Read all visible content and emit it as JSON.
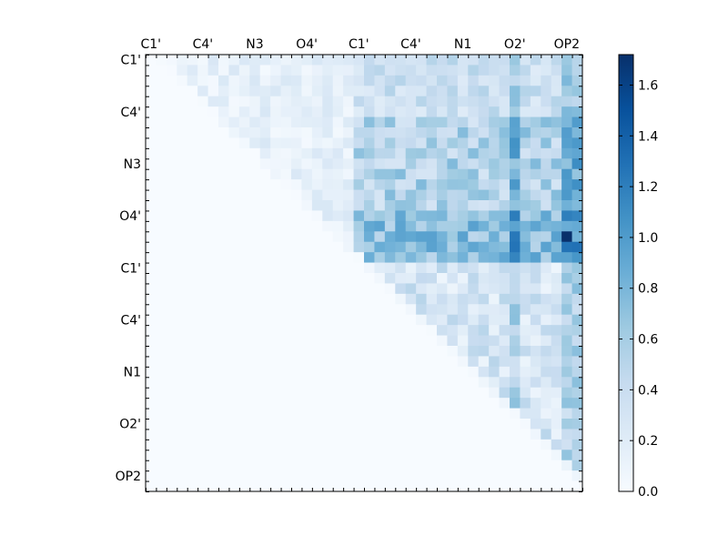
{
  "chart_data": {
    "type": "heatmap",
    "title": "",
    "xlabel": "",
    "ylabel": "",
    "grid": false,
    "size": 42,
    "x_tick_labels": [
      "C1'",
      "C4'",
      "N3",
      "O4'",
      "C1'",
      "C4'",
      "N1",
      "O2'",
      "OP2"
    ],
    "x_tick_index": [
      0,
      5,
      10,
      15,
      20,
      25,
      30,
      35,
      40
    ],
    "y_tick_labels": [
      "C1'",
      "C4'",
      "N3",
      "O4'",
      "C1'",
      "C4'",
      "N1",
      "O2'",
      "OP2"
    ],
    "y_tick_index": [
      0,
      5,
      10,
      15,
      20,
      25,
      30,
      35,
      40
    ],
    "colormap": {
      "name": "Blues",
      "stops": [
        "#f7fbff",
        "#deebf7",
        "#c6dbef",
        "#9ecae1",
        "#6baed6",
        "#4292c6",
        "#2171b5",
        "#08519c",
        "#08306b"
      ]
    },
    "value_range": [
      0.0,
      1.72
    ],
    "colorbar": {
      "ticks": [
        0.0,
        0.2,
        0.4,
        0.6,
        0.8,
        1.0,
        1.2,
        1.4,
        1.6
      ],
      "tick_labels": [
        "0.0",
        "0.2",
        "0.4",
        "0.6",
        "0.8",
        "1.0",
        "1.2",
        "1.4",
        "1.6"
      ],
      "position": "right"
    },
    "block_structure": {
      "block_A_end_index": 20,
      "block_A_mean": 0.15,
      "cross_block_mean": 0.55,
      "block_B_mean": 0.28,
      "strong_columns": [
        35,
        40,
        41
      ],
      "strong_rows": [
        15,
        16,
        17,
        18,
        19
      ],
      "peak": {
        "row": 17,
        "col": 40,
        "value": 1.72
      }
    }
  }
}
